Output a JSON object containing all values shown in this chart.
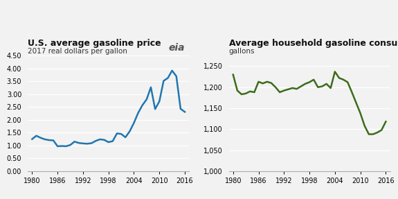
{
  "price_years": [
    1980,
    1981,
    1982,
    1983,
    1984,
    1985,
    1986,
    1987,
    1988,
    1989,
    1990,
    1991,
    1992,
    1993,
    1994,
    1995,
    1996,
    1997,
    1998,
    1999,
    2000,
    2001,
    2002,
    2003,
    2004,
    2005,
    2006,
    2007,
    2008,
    2009,
    2010,
    2011,
    2012,
    2013,
    2014,
    2015,
    2016
  ],
  "price_values": [
    1.25,
    1.38,
    1.3,
    1.24,
    1.21,
    1.2,
    0.97,
    0.98,
    0.97,
    1.02,
    1.15,
    1.1,
    1.08,
    1.07,
    1.09,
    1.18,
    1.24,
    1.22,
    1.13,
    1.17,
    1.47,
    1.45,
    1.32,
    1.55,
    1.88,
    2.27,
    2.57,
    2.8,
    3.27,
    2.42,
    2.72,
    3.52,
    3.63,
    3.92,
    3.7,
    2.43,
    2.31
  ],
  "consumption_years": [
    1980,
    1981,
    1982,
    1983,
    1984,
    1985,
    1986,
    1987,
    1988,
    1989,
    1990,
    1991,
    1992,
    1993,
    1994,
    1995,
    1996,
    1997,
    1998,
    1999,
    2000,
    2001,
    2002,
    2003,
    2004,
    2005,
    2006,
    2007,
    2008,
    2009,
    2010,
    2011,
    2012,
    2013,
    2014,
    2015,
    2016
  ],
  "consumption_values": [
    1230,
    1192,
    1183,
    1185,
    1190,
    1188,
    1213,
    1209,
    1213,
    1210,
    1200,
    1188,
    1192,
    1195,
    1198,
    1196,
    1202,
    1208,
    1212,
    1218,
    1200,
    1202,
    1208,
    1198,
    1237,
    1222,
    1218,
    1212,
    1188,
    1163,
    1138,
    1108,
    1088,
    1088,
    1092,
    1098,
    1118
  ],
  "price_color": "#2176ae",
  "consumption_color": "#3d6b1a",
  "price_title": "U.S. average gasoline price",
  "price_subtitle": "2017 real dollars per gallon",
  "consumption_title": "Average household gasoline consumption",
  "consumption_subtitle": "gallons",
  "price_ylim": [
    0.0,
    4.5
  ],
  "price_yticks": [
    0.0,
    0.5,
    1.0,
    1.5,
    2.0,
    2.5,
    3.0,
    3.5,
    4.0,
    4.5
  ],
  "price_ytick_labels": [
    "0.00",
    "0.50",
    "1.00",
    "1.50",
    "2.00",
    "2.50",
    "3.00",
    "3.50",
    "4.00",
    "4.50"
  ],
  "consumption_ylim": [
    1000,
    1275
  ],
  "consumption_yticks": [
    1000,
    1050,
    1100,
    1150,
    1200,
    1250
  ],
  "consumption_ytick_labels": [
    "1,000",
    "1,050",
    "1,100",
    "1,150",
    "1,200",
    "1,250"
  ],
  "xlim": [
    1979,
    2017
  ],
  "xticks": [
    1980,
    1986,
    1992,
    1998,
    2004,
    2010,
    2016
  ],
  "bg_color": "#f2f2f2",
  "plot_bg_color": "#f2f2f2",
  "grid_color": "#ffffff",
  "line_width": 1.8,
  "title_fontsize": 9.0,
  "subtitle_fontsize": 7.5,
  "tick_fontsize": 7.0
}
